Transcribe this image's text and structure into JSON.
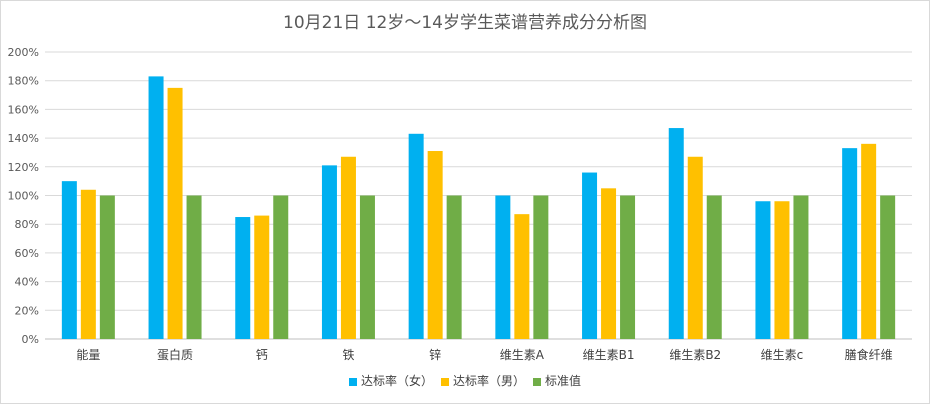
{
  "chart_data": {
    "type": "bar",
    "title": "10月21日 12岁～14岁学生菜谱营养成分分析图",
    "xlabel": "",
    "ylabel": "",
    "ylim": [
      0,
      200
    ],
    "yticks": [
      "0%",
      "20%",
      "40%",
      "60%",
      "80%",
      "100%",
      "120%",
      "140%",
      "160%",
      "180%",
      "200%"
    ],
    "grid": true,
    "legend_position": "bottom",
    "categories": [
      "能量",
      "蛋白质",
      "钙",
      "铁",
      "锌",
      "维生素A",
      "维生素B1",
      "维生素B2",
      "维生素c",
      "膳食纤维"
    ],
    "series": [
      {
        "name": "达标率（女）",
        "color": "#00b0f0",
        "values": [
          110,
          183,
          85,
          121,
          143,
          100,
          116,
          147,
          96,
          133
        ]
      },
      {
        "name": "达标率（男）",
        "color": "#ffc000",
        "values": [
          104,
          175,
          86,
          127,
          131,
          87,
          105,
          127,
          96,
          136
        ]
      },
      {
        "name": "标准值",
        "color": "#70ad47",
        "values": [
          100,
          100,
          100,
          100,
          100,
          100,
          100,
          100,
          100,
          100
        ]
      }
    ]
  }
}
